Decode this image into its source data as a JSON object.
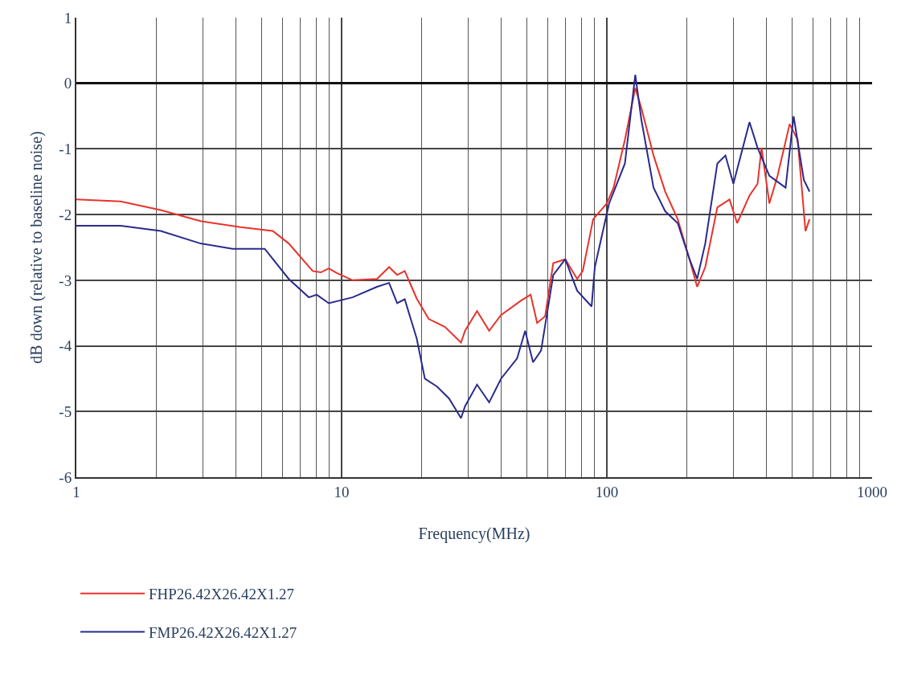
{
  "chart_data": {
    "type": "line",
    "xlabel": "Frequency(MHz)",
    "ylabel": "dB down (relative to baseline noise)",
    "log": "x",
    "grid": true,
    "legend": "bottom left",
    "xlim": [
      1,
      1000
    ],
    "xticks": [
      1,
      10,
      100,
      1000
    ],
    "ylim": [
      -6,
      1
    ],
    "yticks": [
      -6,
      -5,
      -4,
      -3,
      -2,
      -1,
      0,
      1
    ],
    "series": [
      {
        "name": "FHP26.42X26.42X1.27",
        "color": "#e8322a",
        "x": [
          1,
          1.47,
          2.08,
          2.94,
          4.16,
          5.5,
          6.32,
          7.78,
          8.35,
          8.95,
          9.59,
          11.0,
          13.6,
          15.1,
          16.2,
          17.3,
          19.2,
          21.3,
          24.5,
          28.2,
          29.2,
          32.4,
          36.0,
          39.9,
          47.5,
          51.6,
          54.6,
          58.5,
          62.8,
          69.7,
          77.3,
          81.1,
          88.8,
          100,
          106,
          117,
          128,
          135,
          150,
          166,
          185,
          205,
          219,
          235,
          261,
          290,
          310,
          345,
          370,
          383,
          410,
          440,
          489,
          524,
          561,
          581
        ],
        "values": [
          -1.77,
          -1.8,
          -1.93,
          -2.1,
          -2.19,
          -2.25,
          -2.44,
          -2.86,
          -2.88,
          -2.82,
          -2.89,
          -3.0,
          -2.98,
          -2.8,
          -2.92,
          -2.86,
          -3.28,
          -3.59,
          -3.71,
          -3.95,
          -3.77,
          -3.47,
          -3.77,
          -3.53,
          -3.31,
          -3.22,
          -3.65,
          -3.55,
          -2.74,
          -2.68,
          -2.98,
          -2.86,
          -2.07,
          -1.83,
          -1.59,
          -0.86,
          -0.07,
          -0.38,
          -1.1,
          -1.65,
          -2.07,
          -2.68,
          -3.1,
          -2.8,
          -1.89,
          -1.77,
          -2.13,
          -1.71,
          -1.53,
          -0.98,
          -1.83,
          -1.41,
          -0.62,
          -0.86,
          -2.25,
          -2.07
        ]
      },
      {
        "name": "FMP26.42X26.42X1.27",
        "color": "#2a2a8c",
        "x": [
          1,
          1.47,
          2.08,
          2.94,
          3.88,
          5.13,
          6.32,
          7.52,
          8.06,
          8.95,
          11.0,
          13.6,
          15.1,
          16.2,
          17.3,
          19.2,
          20.6,
          22.9,
          25.4,
          28.2,
          29.2,
          32.4,
          36.0,
          39.9,
          45.9,
          49.2,
          52.7,
          56.5,
          62.8,
          69.7,
          77.3,
          87.6,
          90.1,
          102,
          117,
          128,
          135,
          150,
          166,
          185,
          205,
          219,
          235,
          261,
          280,
          300,
          345,
          370,
          410,
          472,
          506,
          553,
          581
        ],
        "values": [
          -2.17,
          -2.17,
          -2.25,
          -2.44,
          -2.52,
          -2.52,
          -2.98,
          -3.26,
          -3.22,
          -3.35,
          -3.26,
          -3.1,
          -3.04,
          -3.35,
          -3.29,
          -3.89,
          -4.5,
          -4.62,
          -4.8,
          -5.1,
          -4.92,
          -4.59,
          -4.86,
          -4.5,
          -4.19,
          -3.77,
          -4.25,
          -4.07,
          -2.92,
          -2.68,
          -3.16,
          -3.4,
          -2.8,
          -1.83,
          -1.22,
          0.13,
          -0.56,
          -1.59,
          -1.95,
          -2.13,
          -2.68,
          -2.98,
          -2.44,
          -1.22,
          -1.1,
          -1.53,
          -0.59,
          -0.98,
          -1.41,
          -1.59,
          -0.5,
          -1.47,
          -1.65
        ]
      }
    ]
  }
}
